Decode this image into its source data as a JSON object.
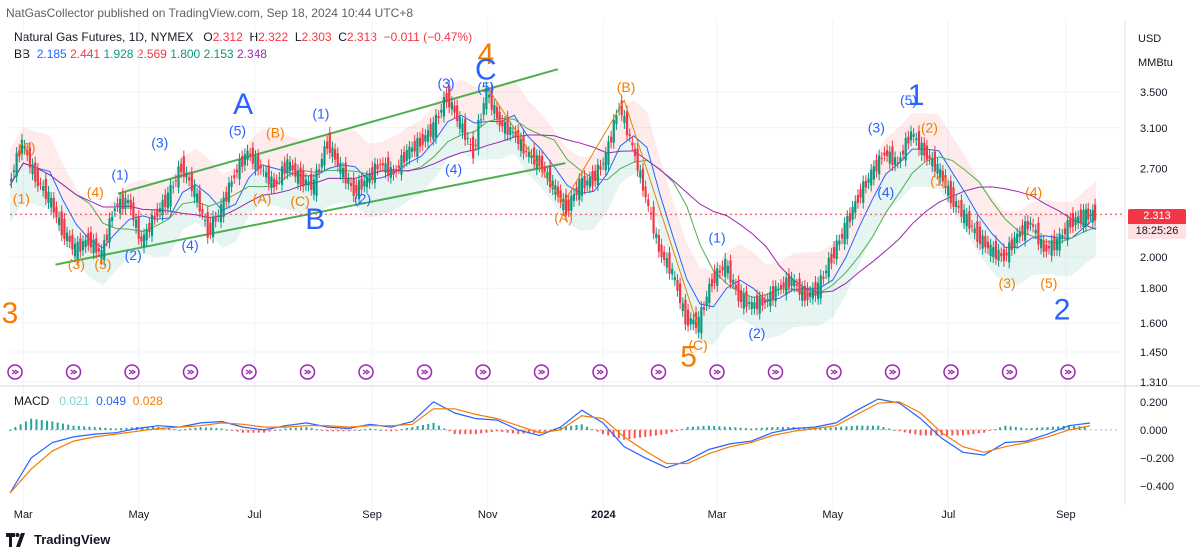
{
  "header": {
    "publisher": "NatGasCollector published on TradingView.com, Sep 18, 2024 10:44 UTC+8",
    "symbol": "Natural Gas Futures, 1D, NYMEX",
    "ohlc": {
      "o_label": "O",
      "o": "2.312",
      "h_label": "H",
      "h": "2.322",
      "l_label": "L",
      "l": "2.303",
      "c_label": "C",
      "c": "2.313",
      "change": "−0.011 (−0.47%)"
    },
    "bb": {
      "label": "BB",
      "v1": "2.185",
      "v2": "2.441",
      "v3": "1.928",
      "v4": "2.569",
      "v5": "1.800",
      "v6": "2.153",
      "v7": "2.348"
    }
  },
  "units": {
    "currency": "USD",
    "unit": "MMBtu"
  },
  "price_tag": {
    "price": "2.313",
    "countdown": "18:25:26"
  },
  "macd_legend": {
    "label": "MACD",
    "hist": "0.021",
    "macd": "0.049",
    "signal": "0.028"
  },
  "footer": {
    "brand": "TradingView"
  },
  "colors": {
    "bull": "#089981",
    "bear": "#f23645",
    "blue": "#2962ff",
    "orange": "#f57c00",
    "purple": "#9c27b0",
    "channel": "#4caf50"
  },
  "chart_data": [
    {
      "type": "candlestick",
      "title": "Natural Gas Futures, 1D, NYMEX",
      "ylabel": "USD / MMBtu",
      "y_scale": "log",
      "ylim": [
        1.31,
        3.9
      ],
      "y_ticks": [
        "3.500",
        "3.100",
        "2.700",
        "2.300",
        "2.000",
        "1.800",
        "1.600",
        "1.450",
        "1.310"
      ],
      "x_ticks": [
        "Mar",
        "May",
        "Jul",
        "Sep",
        "Nov",
        "2024",
        "Mar",
        "May",
        "Jul",
        "Sep"
      ],
      "close_series": [
        {
          "date": "2023-02-22",
          "value": 2.55
        },
        {
          "date": "2023-03-01",
          "value": 2.95
        },
        {
          "date": "2023-03-08",
          "value": 2.62
        },
        {
          "date": "2023-03-15",
          "value": 2.45
        },
        {
          "date": "2023-03-22",
          "value": 2.2
        },
        {
          "date": "2023-03-29",
          "value": 2.05
        },
        {
          "date": "2023-04-05",
          "value": 2.12
        },
        {
          "date": "2023-04-12",
          "value": 2.02
        },
        {
          "date": "2023-04-19",
          "value": 2.38
        },
        {
          "date": "2023-04-26",
          "value": 2.42
        },
        {
          "date": "2023-05-03",
          "value": 2.1
        },
        {
          "date": "2023-05-10",
          "value": 2.3
        },
        {
          "date": "2023-05-17",
          "value": 2.45
        },
        {
          "date": "2023-05-24",
          "value": 2.72
        },
        {
          "date": "2023-05-31",
          "value": 2.5
        },
        {
          "date": "2023-06-07",
          "value": 2.18
        },
        {
          "date": "2023-06-14",
          "value": 2.35
        },
        {
          "date": "2023-06-21",
          "value": 2.65
        },
        {
          "date": "2023-06-28",
          "value": 2.85
        },
        {
          "date": "2023-07-05",
          "value": 2.7
        },
        {
          "date": "2023-07-12",
          "value": 2.55
        },
        {
          "date": "2023-07-19",
          "value": 2.75
        },
        {
          "date": "2023-07-26",
          "value": 2.6
        },
        {
          "date": "2023-08-02",
          "value": 2.55
        },
        {
          "date": "2023-08-09",
          "value": 2.95
        },
        {
          "date": "2023-08-16",
          "value": 2.7
        },
        {
          "date": "2023-08-23",
          "value": 2.5
        },
        {
          "date": "2023-08-30",
          "value": 2.6
        },
        {
          "date": "2023-09-06",
          "value": 2.75
        },
        {
          "date": "2023-09-13",
          "value": 2.65
        },
        {
          "date": "2023-09-20",
          "value": 2.85
        },
        {
          "date": "2023-09-27",
          "value": 2.95
        },
        {
          "date": "2023-10-04",
          "value": 3.1
        },
        {
          "date": "2023-10-11",
          "value": 3.45
        },
        {
          "date": "2023-10-18",
          "value": 3.15
        },
        {
          "date": "2023-10-25",
          "value": 2.85
        },
        {
          "date": "2023-11-01",
          "value": 3.5
        },
        {
          "date": "2023-11-08",
          "value": 3.15
        },
        {
          "date": "2023-11-15",
          "value": 3.05
        },
        {
          "date": "2023-11-22",
          "value": 2.85
        },
        {
          "date": "2023-11-29",
          "value": 2.75
        },
        {
          "date": "2023-12-06",
          "value": 2.55
        },
        {
          "date": "2023-12-13",
          "value": 2.35
        },
        {
          "date": "2023-12-20",
          "value": 2.55
        },
        {
          "date": "2023-12-27",
          "value": 2.6
        },
        {
          "date": "2024-01-03",
          "value": 2.8
        },
        {
          "date": "2024-01-10",
          "value": 3.35
        },
        {
          "date": "2024-01-17",
          "value": 2.9
        },
        {
          "date": "2024-01-24",
          "value": 2.45
        },
        {
          "date": "2024-01-31",
          "value": 2.05
        },
        {
          "date": "2024-02-07",
          "value": 1.9
        },
        {
          "date": "2024-02-14",
          "value": 1.62
        },
        {
          "date": "2024-02-21",
          "value": 1.6
        },
        {
          "date": "2024-02-28",
          "value": 1.85
        },
        {
          "date": "2024-03-06",
          "value": 1.95
        },
        {
          "date": "2024-03-13",
          "value": 1.75
        },
        {
          "date": "2024-03-20",
          "value": 1.7
        },
        {
          "date": "2024-03-27",
          "value": 1.72
        },
        {
          "date": "2024-04-03",
          "value": 1.8
        },
        {
          "date": "2024-04-10",
          "value": 1.85
        },
        {
          "date": "2024-04-17",
          "value": 1.75
        },
        {
          "date": "2024-04-24",
          "value": 1.8
        },
        {
          "date": "2024-05-01",
          "value": 2.0
        },
        {
          "date": "2024-05-08",
          "value": 2.2
        },
        {
          "date": "2024-05-15",
          "value": 2.45
        },
        {
          "date": "2024-05-22",
          "value": 2.65
        },
        {
          "date": "2024-05-29",
          "value": 2.85
        },
        {
          "date": "2024-06-05",
          "value": 2.75
        },
        {
          "date": "2024-06-12",
          "value": 3.05
        },
        {
          "date": "2024-06-19",
          "value": 2.85
        },
        {
          "date": "2024-06-26",
          "value": 2.7
        },
        {
          "date": "2024-07-03",
          "value": 2.45
        },
        {
          "date": "2024-07-10",
          "value": 2.3
        },
        {
          "date": "2024-07-17",
          "value": 2.15
        },
        {
          "date": "2024-07-24",
          "value": 2.05
        },
        {
          "date": "2024-07-31",
          "value": 2.0
        },
        {
          "date": "2024-08-07",
          "value": 2.15
        },
        {
          "date": "2024-08-14",
          "value": 2.25
        },
        {
          "date": "2024-08-21",
          "value": 2.05
        },
        {
          "date": "2024-08-28",
          "value": 2.1
        },
        {
          "date": "2024-09-04",
          "value": 2.25
        },
        {
          "date": "2024-09-11",
          "value": 2.3
        },
        {
          "date": "2024-09-17",
          "value": 2.313
        }
      ],
      "wave_labels": [
        {
          "text": "3",
          "date": "2023-02-22",
          "price": 1.6,
          "color": "#f57c00",
          "size": "large"
        },
        {
          "text": "(2)",
          "date": "2023-03-03",
          "price": 2.85,
          "color": "#f57c00"
        },
        {
          "text": "(1)",
          "date": "2023-02-28",
          "price": 2.4,
          "color": "#f57c00"
        },
        {
          "text": "(3)",
          "date": "2023-03-29",
          "price": 1.92,
          "color": "#f57c00"
        },
        {
          "text": "(4)",
          "date": "2023-04-08",
          "price": 2.45,
          "color": "#f57c00"
        },
        {
          "text": "(5)",
          "date": "2023-04-12",
          "price": 1.92,
          "color": "#f57c00"
        },
        {
          "text": "(1)",
          "date": "2023-04-21",
          "price": 2.6,
          "color": "#2962ff"
        },
        {
          "text": "(2)",
          "date": "2023-04-28",
          "price": 1.98,
          "color": "#2962ff"
        },
        {
          "text": "(3)",
          "date": "2023-05-12",
          "price": 2.9,
          "color": "#2962ff"
        },
        {
          "text": "(4)",
          "date": "2023-05-28",
          "price": 2.05,
          "color": "#2962ff"
        },
        {
          "text": "(5)",
          "date": "2023-06-22",
          "price": 3.02,
          "color": "#2962ff"
        },
        {
          "text": "A",
          "date": "2023-06-25",
          "price": 3.25,
          "color": "#2962ff",
          "size": "large"
        },
        {
          "text": "(B)",
          "date": "2023-07-12",
          "price": 3.0,
          "color": "#f57c00"
        },
        {
          "text": "(A)",
          "date": "2023-07-05",
          "price": 2.4,
          "color": "#f57c00"
        },
        {
          "text": "(C)",
          "date": "2023-07-25",
          "price": 2.38,
          "color": "#f57c00"
        },
        {
          "text": "(1)",
          "date": "2023-08-05",
          "price": 3.2,
          "color": "#2962ff"
        },
        {
          "text": "B",
          "date": "2023-08-02",
          "price": 2.2,
          "color": "#2962ff",
          "size": "large"
        },
        {
          "text": "(2)",
          "date": "2023-08-27",
          "price": 2.4,
          "color": "#2962ff"
        },
        {
          "text": "(3)",
          "date": "2023-10-10",
          "price": 3.55,
          "color": "#2962ff"
        },
        {
          "text": "(4)",
          "date": "2023-10-14",
          "price": 2.65,
          "color": "#2962ff"
        },
        {
          "text": "4",
          "date": "2023-10-31",
          "price": 3.85,
          "color": "#f57c00",
          "size": "large"
        },
        {
          "text": "C",
          "date": "2023-10-31",
          "price": 3.65,
          "color": "#2962ff",
          "size": "large"
        },
        {
          "text": "(5)",
          "date": "2023-10-31",
          "price": 3.5,
          "color": "#2962ff"
        },
        {
          "text": "(A)",
          "date": "2023-12-11",
          "price": 2.25,
          "color": "#f57c00"
        },
        {
          "text": "(B)",
          "date": "2024-01-13",
          "price": 3.5,
          "color": "#f57c00"
        },
        {
          "text": "(C)",
          "date": "2024-02-20",
          "price": 1.46,
          "color": "#f57c00"
        },
        {
          "text": "5",
          "date": "2024-02-15",
          "price": 1.38,
          "color": "#f57c00",
          "size": "large"
        },
        {
          "text": "(1)",
          "date": "2024-03-01",
          "price": 2.1,
          "color": "#2962ff"
        },
        {
          "text": "(2)",
          "date": "2024-03-22",
          "price": 1.52,
          "color": "#2962ff"
        },
        {
          "text": "(3)",
          "date": "2024-05-24",
          "price": 3.05,
          "color": "#2962ff"
        },
        {
          "text": "(4)",
          "date": "2024-05-29",
          "price": 2.45,
          "color": "#2962ff"
        },
        {
          "text": "(5)",
          "date": "2024-06-10",
          "price": 3.35,
          "color": "#2962ff"
        },
        {
          "text": "1",
          "date": "2024-06-14",
          "price": 3.35,
          "color": "#2962ff",
          "size": "large"
        },
        {
          "text": "(2)",
          "date": "2024-06-21",
          "price": 3.05,
          "color": "#f57c00"
        },
        {
          "text": "(1)",
          "date": "2024-06-26",
          "price": 2.55,
          "color": "#f57c00"
        },
        {
          "text": "(3)",
          "date": "2024-08-01",
          "price": 1.8,
          "color": "#f57c00"
        },
        {
          "text": "(4)",
          "date": "2024-08-15",
          "price": 2.45,
          "color": "#f57c00"
        },
        {
          "text": "(5)",
          "date": "2024-08-23",
          "price": 1.8,
          "color": "#f57c00"
        },
        {
          "text": "2",
          "date": "2024-08-30",
          "price": 1.62,
          "color": "#2962ff",
          "size": "large"
        }
      ]
    },
    {
      "type": "line",
      "title": "MACD",
      "ylim": [
        -0.5,
        0.27
      ],
      "y_ticks": [
        "0.200",
        "0.000",
        "−0.200",
        "−0.400"
      ],
      "series": [
        {
          "name": "MACD",
          "color": "#2962ff",
          "values": [
            -0.45,
            -0.2,
            -0.09,
            -0.05,
            -0.03,
            -0.02,
            0.01,
            0.03,
            0.02,
            0.05,
            0.06,
            0.02,
            0.0,
            0.03,
            0.05,
            0.02,
            0.01,
            0.04,
            0.02,
            0.06,
            0.2,
            0.12,
            0.08,
            0.07,
            0.0,
            -0.04,
            0.02,
            0.14,
            0.05,
            -0.12,
            -0.2,
            -0.27,
            -0.22,
            -0.14,
            -0.1,
            -0.08,
            -0.02,
            0.01,
            0.02,
            0.05,
            0.14,
            0.22,
            0.19,
            0.08,
            -0.06,
            -0.16,
            -0.18,
            -0.09,
            -0.08,
            -0.03,
            0.03,
            0.049
          ]
        },
        {
          "name": "Signal",
          "color": "#f57c00",
          "values": [
            -0.45,
            -0.28,
            -0.15,
            -0.08,
            -0.05,
            -0.03,
            -0.01,
            0.01,
            0.02,
            0.03,
            0.05,
            0.04,
            0.02,
            0.02,
            0.03,
            0.03,
            0.02,
            0.03,
            0.03,
            0.04,
            0.15,
            0.15,
            0.11,
            0.08,
            0.03,
            -0.02,
            0.0,
            0.1,
            0.08,
            -0.05,
            -0.15,
            -0.24,
            -0.24,
            -0.17,
            -0.12,
            -0.09,
            -0.04,
            -0.01,
            0.01,
            0.03,
            0.11,
            0.19,
            0.2,
            0.12,
            -0.02,
            -0.12,
            -0.16,
            -0.12,
            -0.09,
            -0.05,
            0.0,
            0.028
          ]
        }
      ],
      "x_ticks": [
        "Mar",
        "May",
        "Jul",
        "Sep",
        "Nov",
        "2024",
        "Mar",
        "May",
        "Jul",
        "Sep"
      ]
    }
  ]
}
